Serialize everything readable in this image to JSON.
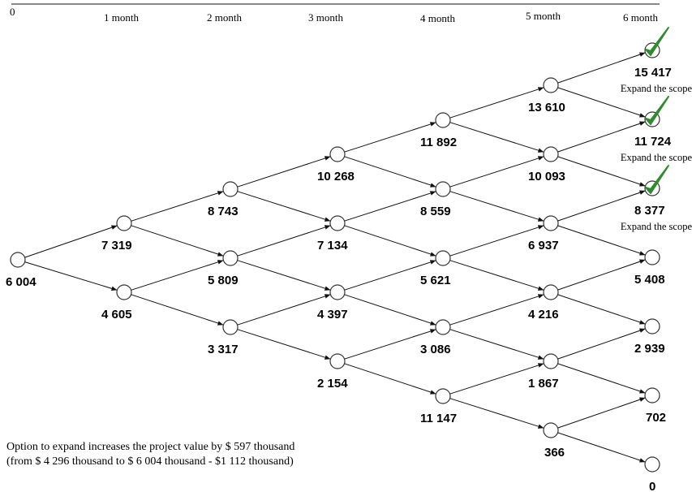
{
  "timeline": {
    "labels": [
      "0",
      "1 month",
      "2 month",
      "3 month",
      "4 month",
      "5 month",
      "6 month"
    ]
  },
  "tree": {
    "values": [
      [
        "6 004"
      ],
      [
        "7 319",
        "4 605"
      ],
      [
        "8 743",
        "5 809",
        "3 317"
      ],
      [
        "10 268",
        "7 134",
        "4 397",
        "2 154"
      ],
      [
        "11 892",
        "8 559",
        "5 621",
        "3 086",
        "11 147"
      ],
      [
        "13 610",
        "10 093",
        "6 937",
        "4 216",
        "1 867",
        "366"
      ],
      [
        "15 417",
        "11 724",
        "8 377",
        "5 408",
        "2 939",
        "702",
        "0"
      ]
    ],
    "expanded_nodes": [
      0,
      1,
      2
    ],
    "decision_label": "Expand the scope",
    "check_color": "#2e8b2e"
  },
  "note": {
    "line1": "Option to expand increases the project value by $ 597 thousand",
    "line2": "(from $ 4 296 thousand to $ 6 004 thousand - $1 112 thousand)"
  }
}
